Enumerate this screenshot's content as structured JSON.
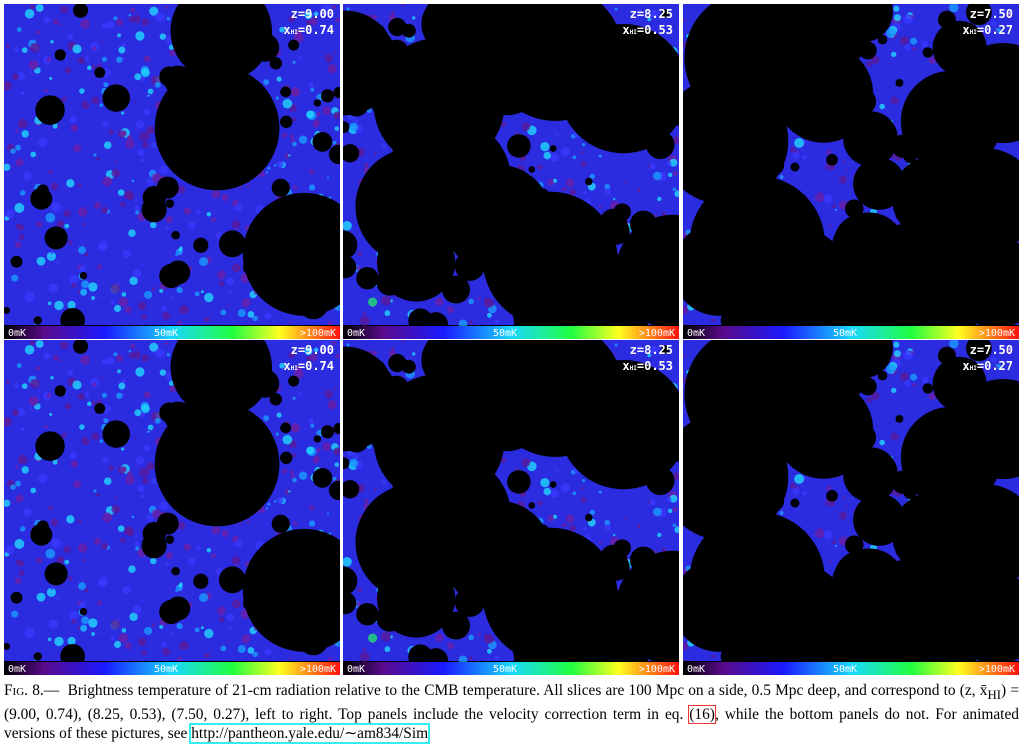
{
  "figure": {
    "panels": [
      {
        "z": "z=9.00",
        "x": "x",
        "x_sub": "HI",
        "x_rest": "=0.74",
        "colorbar": [
          "0mK",
          "50mK",
          ">100mK"
        ]
      },
      {
        "z": "z=8.25",
        "x": "x",
        "x_sub": "HI",
        "x_rest": "=0.53",
        "colorbar": [
          "0mK",
          "50mK",
          ">100mK"
        ]
      },
      {
        "z": "z=7.50",
        "x": "x",
        "x_sub": "HI",
        "x_rest": "=0.27",
        "colorbar": [
          "0mK",
          "50mK",
          ">100mK"
        ]
      },
      {
        "z": "z=9.00",
        "x": "x",
        "x_sub": "HI",
        "x_rest": "=0.74",
        "colorbar": [
          "0mK",
          "50mK",
          ">100mK"
        ]
      },
      {
        "z": "z=8.25",
        "x": "x",
        "x_sub": "HI",
        "x_rest": "=0.53",
        "colorbar": [
          "0mK",
          "50mK",
          ">100mK"
        ]
      },
      {
        "z": "z=7.50",
        "x": "x",
        "x_sub": "HI",
        "x_rest": "=0.27",
        "colorbar": [
          "0mK",
          "50mK",
          ">100mK"
        ]
      }
    ],
    "caption": {
      "label": "Fig. 8.—",
      "text1": "Brightness temperature of 21-cm radiation relative to the CMB temperature. All slices are 100 Mpc on a side, 0.5 Mpc deep, and correspond to (z, x̄",
      "sub": "HI",
      "text2": ") = (9.00, 0.74), (8.25, 0.53), (7.50, 0.27), left to right. Top panels include the velocity correction term in eq.",
      "ref": "(16)",
      "text3": ", while the bottom panels do not. For animated versions of these pictures, see",
      "link": "http://pantheon.yale.edu/∼am834/Sim"
    }
  }
}
